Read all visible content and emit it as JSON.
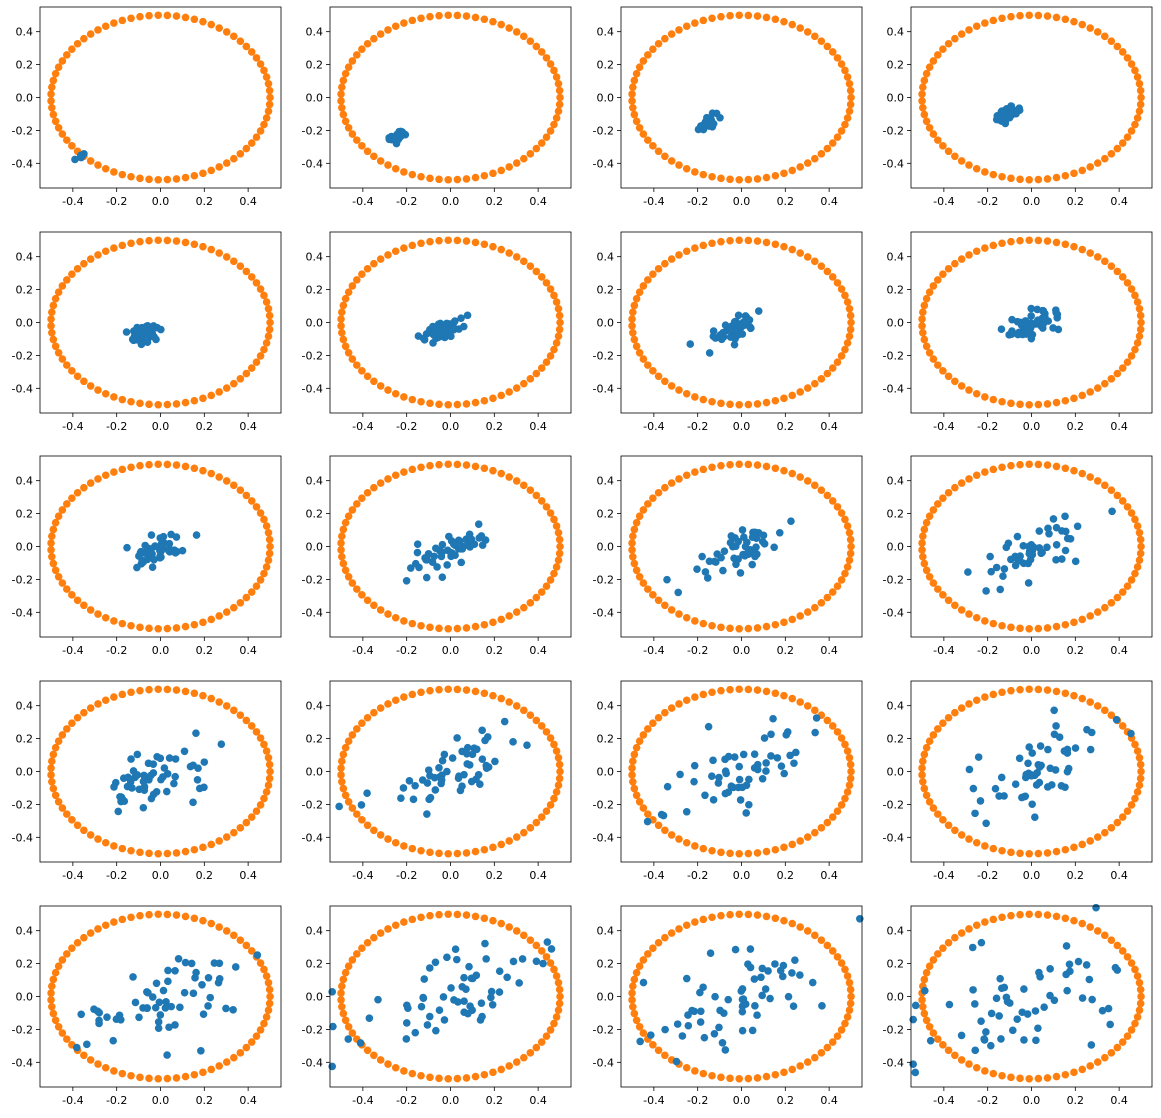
{
  "chart_data": {
    "type": "scatter",
    "grid": false,
    "layout": {
      "rows": 5,
      "cols": 4
    },
    "colors": {
      "series_blue": "#1f77b4",
      "series_orange": "#ff7f0e"
    },
    "ring": {
      "type": "circle",
      "center": [
        0,
        0
      ],
      "radius": 0.5,
      "points": 75
    },
    "panels": [
      {
        "xlim": [
          -0.55,
          0.55
        ],
        "ylim": [
          -0.55,
          0.55
        ],
        "blue_cluster": {
          "center": [
            -0.35,
            -0.35
          ],
          "spread": 0.015,
          "n": 6,
          "angle_deg": 45
        }
      },
      {
        "xlim": [
          -0.55,
          0.55
        ],
        "ylim": [
          -0.55,
          0.55
        ],
        "blue_cluster": {
          "center": [
            -0.24,
            -0.24
          ],
          "spread": 0.02,
          "n": 30,
          "angle_deg": 45
        }
      },
      {
        "xlim": [
          -0.55,
          0.55
        ],
        "ylim": [
          -0.55,
          0.55
        ],
        "blue_cluster": {
          "center": [
            -0.16,
            -0.16
          ],
          "spread": 0.025,
          "n": 30,
          "angle_deg": 45
        }
      },
      {
        "xlim": [
          -0.55,
          0.55
        ],
        "ylim": [
          -0.55,
          0.55
        ],
        "blue_cluster": {
          "center": [
            -0.1,
            -0.1
          ],
          "spread": 0.03,
          "n": 30,
          "angle_deg": 40
        }
      },
      {
        "xlim": [
          -0.55,
          0.55
        ],
        "ylim": [
          -0.55,
          0.55
        ],
        "blue_cluster": {
          "center": [
            -0.07,
            -0.07
          ],
          "spread": 0.035,
          "n": 40,
          "angle_deg": 35
        }
      },
      {
        "xlim": [
          -0.55,
          0.55
        ],
        "ylim": [
          -0.55,
          0.55
        ],
        "blue_cluster": {
          "center": [
            -0.04,
            -0.05
          ],
          "spread": 0.045,
          "n": 45,
          "angle_deg": 35
        }
      },
      {
        "xlim": [
          -0.55,
          0.55
        ],
        "ylim": [
          -0.55,
          0.55
        ],
        "blue_cluster": {
          "center": [
            -0.02,
            -0.03
          ],
          "spread": 0.055,
          "n": 50,
          "angle_deg": 35
        }
      },
      {
        "xlim": [
          -0.55,
          0.55
        ],
        "ylim": [
          -0.55,
          0.55
        ],
        "blue_cluster": {
          "center": [
            0.0,
            -0.02
          ],
          "spread": 0.06,
          "n": 50,
          "angle_deg": 35
        }
      },
      {
        "xlim": [
          -0.55,
          0.55
        ],
        "ylim": [
          -0.55,
          0.55
        ],
        "blue_cluster": {
          "center": [
            0.0,
            -0.02
          ],
          "spread": 0.07,
          "n": 50,
          "angle_deg": 35
        }
      },
      {
        "xlim": [
          -0.55,
          0.55
        ],
        "ylim": [
          -0.55,
          0.55
        ],
        "blue_cluster": {
          "center": [
            0.0,
            -0.02
          ],
          "spread": 0.085,
          "n": 50,
          "angle_deg": 35
        }
      },
      {
        "xlim": [
          -0.55,
          0.55
        ],
        "ylim": [
          -0.55,
          0.55
        ],
        "blue_cluster": {
          "center": [
            0.0,
            -0.02
          ],
          "spread": 0.1,
          "n": 50,
          "angle_deg": 35
        }
      },
      {
        "xlim": [
          -0.55,
          0.55
        ],
        "ylim": [
          -0.55,
          0.55
        ],
        "blue_cluster": {
          "center": [
            0.0,
            -0.02
          ],
          "spread": 0.115,
          "n": 50,
          "angle_deg": 35
        }
      },
      {
        "xlim": [
          -0.55,
          0.55
        ],
        "ylim": [
          -0.55,
          0.55
        ],
        "blue_cluster": {
          "center": [
            0.0,
            -0.01
          ],
          "spread": 0.13,
          "n": 55,
          "angle_deg": 35
        }
      },
      {
        "xlim": [
          -0.55,
          0.55
        ],
        "ylim": [
          -0.55,
          0.55
        ],
        "blue_cluster": {
          "center": [
            0.0,
            -0.01
          ],
          "spread": 0.145,
          "n": 55,
          "angle_deg": 35
        }
      },
      {
        "xlim": [
          -0.55,
          0.55
        ],
        "ylim": [
          -0.55,
          0.55
        ],
        "blue_cluster": {
          "center": [
            0.0,
            -0.01
          ],
          "spread": 0.16,
          "n": 55,
          "angle_deg": 35
        }
      },
      {
        "xlim": [
          -0.55,
          0.55
        ],
        "ylim": [
          -0.55,
          0.55
        ],
        "blue_cluster": {
          "center": [
            0.0,
            -0.01
          ],
          "spread": 0.175,
          "n": 55,
          "angle_deg": 35
        }
      },
      {
        "xlim": [
          -0.55,
          0.55
        ],
        "ylim": [
          -0.55,
          0.55
        ],
        "blue_cluster": {
          "center": [
            0.0,
            0.0
          ],
          "spread": 0.19,
          "n": 60,
          "angle_deg": 30
        }
      },
      {
        "xlim": [
          -0.55,
          0.55
        ],
        "ylim": [
          -0.55,
          0.55
        ],
        "blue_cluster": {
          "center": [
            0.0,
            0.0
          ],
          "spread": 0.21,
          "n": 60,
          "angle_deg": 30
        }
      },
      {
        "xlim": [
          -0.55,
          0.55
        ],
        "ylim": [
          -0.55,
          0.55
        ],
        "blue_cluster": {
          "center": [
            0.0,
            0.0
          ],
          "spread": 0.23,
          "n": 60,
          "angle_deg": 30
        }
      },
      {
        "xlim": [
          -0.55,
          0.55
        ],
        "ylim": [
          -0.55,
          0.55
        ],
        "blue_cluster": {
          "center": [
            0.0,
            0.0
          ],
          "spread": 0.25,
          "n": 60,
          "angle_deg": 30
        }
      }
    ],
    "x_ticks": [
      -0.4,
      -0.2,
      0.0,
      0.2,
      0.4
    ],
    "y_ticks": [
      0.4,
      0.2,
      0.0,
      -0.2,
      -0.4
    ],
    "x_tick_labels": [
      "-0.4",
      "-0.2",
      "0.0",
      "0.2",
      "0.4"
    ],
    "y_tick_labels": [
      "0.4",
      "0.2",
      "0.0",
      "-0.2",
      "-0.4"
    ]
  }
}
